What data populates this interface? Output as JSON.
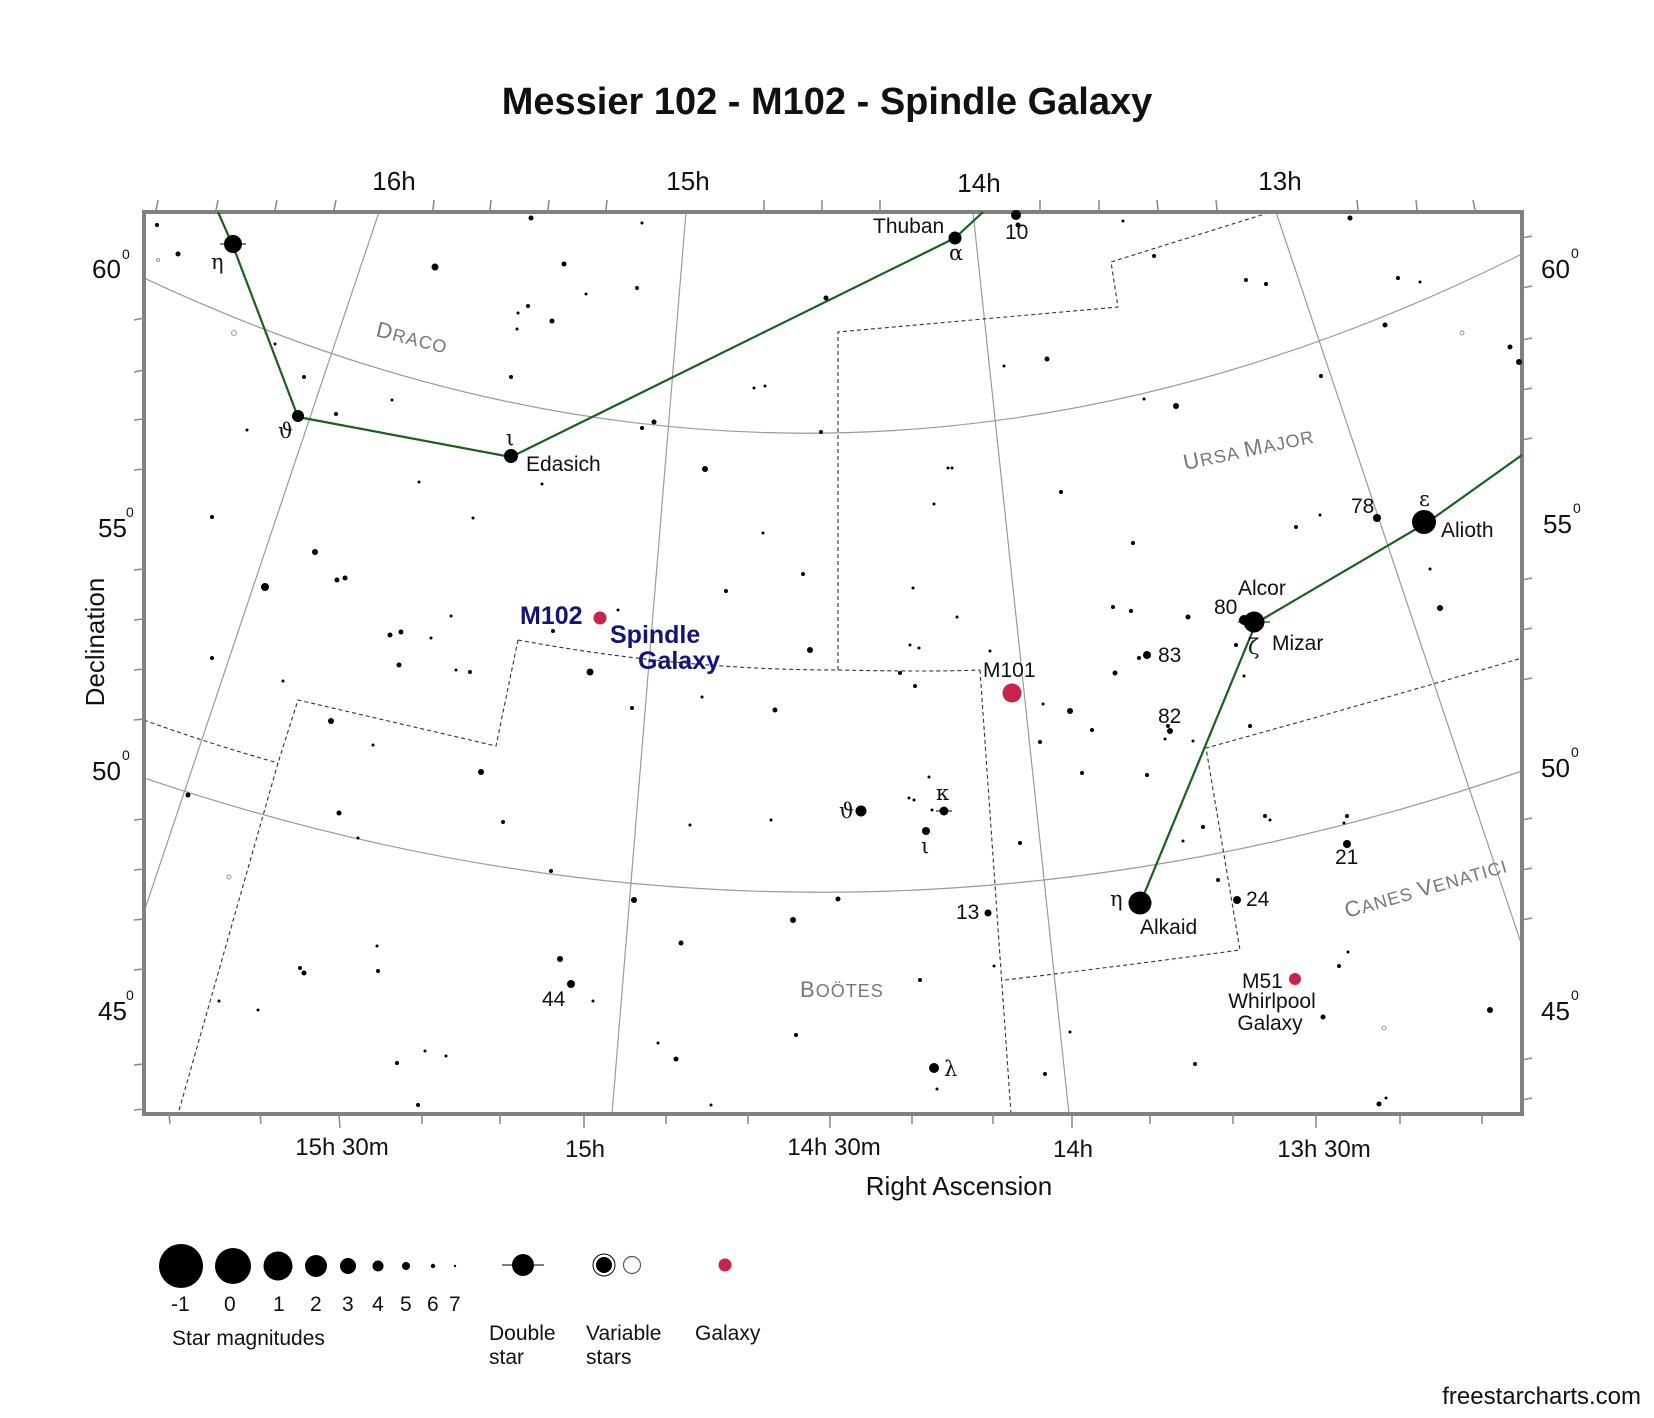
{
  "title": "Messier 102 - M102 - Spindle Galaxy",
  "axes": {
    "x_title": "Right Ascension",
    "y_title": "Declination",
    "ra_top": [
      "16h",
      "15h",
      "14h",
      "13h"
    ],
    "ra_bottom": [
      "15h 30m",
      "15h",
      "14h 30m",
      "14h",
      "13h 30m"
    ],
    "dec": [
      "60",
      "55",
      "50",
      "45"
    ],
    "dec_sup": "0"
  },
  "constellations": [
    "Draco",
    "Ursa Major",
    "Canes Venatici",
    "Boötes"
  ],
  "named_stars": {
    "thuban": {
      "name": "Thuban",
      "greek": "α"
    },
    "edasich": {
      "name": "Edasich",
      "greek": "ι"
    },
    "alioth": {
      "name": "Alioth",
      "greek": "ε"
    },
    "alcor": {
      "name": "Alcor",
      "flam": "80"
    },
    "mizar": {
      "name": "Mizar",
      "greek": "ζ"
    },
    "alkaid": {
      "name": "Alkaid",
      "greek": "η"
    },
    "draco_eta": {
      "greek": "η"
    },
    "draco_theta": {
      "greek": "ϑ"
    }
  },
  "other_labels": {
    "n10": "10",
    "n78": "78",
    "n83": "83",
    "n82": "82",
    "n21": "21",
    "n24": "24",
    "n13": "13",
    "n44": "44",
    "boo_theta": "ϑ",
    "boo_kappa": "κ",
    "boo_iota": "ι",
    "boo_lambda": "λ"
  },
  "objects": {
    "m102": {
      "id": "M102",
      "line1": "Spindle",
      "line2": "Galaxy",
      "color": "#c8234b"
    },
    "m101": {
      "id": "M101",
      "color": "#c8234b"
    },
    "m51": {
      "id": "M51",
      "line1": "Whirlpool",
      "line2": "Galaxy",
      "color": "#c8234b"
    }
  },
  "legend": {
    "magnitudes": [
      "-1",
      "0",
      "1",
      "2",
      "3",
      "4",
      "5",
      "6",
      "7"
    ],
    "magnitudes_caption": "Star magnitudes",
    "double_star": [
      "Double",
      "star"
    ],
    "variable_stars": [
      "Variable",
      "stars"
    ],
    "galaxy": "Galaxy"
  },
  "credit": "freestarcharts.com",
  "colors": {
    "stick_figure": "#1b5e20",
    "frame": "#808080",
    "grid": "#999999",
    "galaxy": "#c8234b",
    "m102_text": "#141478"
  }
}
